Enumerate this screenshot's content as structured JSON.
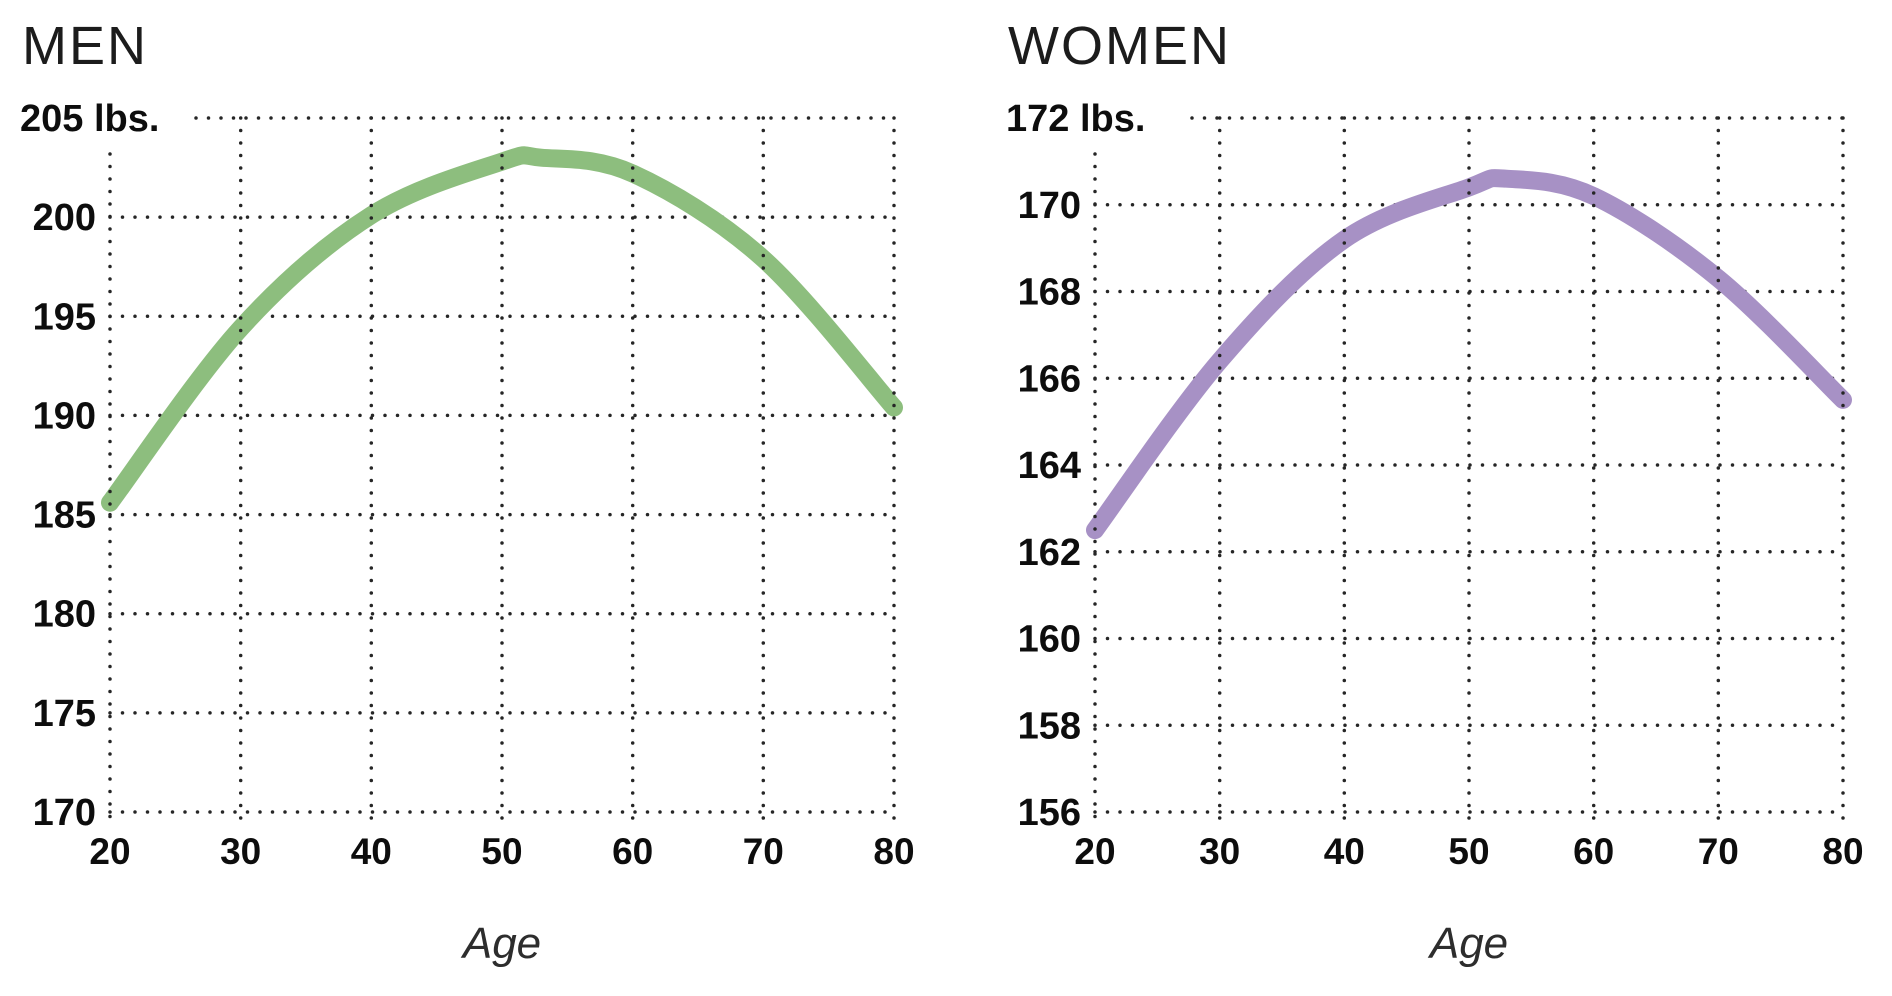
{
  "figure": {
    "background": "#ffffff",
    "grid_style": "dotted",
    "grid_color": "#262626"
  },
  "chart_data": [
    {
      "type": "line",
      "title": "MEN",
      "ylabel_top": "205 lbs.",
      "xlabel": "Age",
      "line_color": "#8dbe7e",
      "x": [
        20,
        30,
        40,
        50,
        53,
        60,
        70,
        80
      ],
      "y": [
        185.6,
        194.4,
        200.1,
        202.8,
        203.0,
        202.2,
        197.9,
        190.4
      ],
      "xticks": [
        20,
        30,
        40,
        50,
        60,
        70,
        80
      ],
      "yticks": [
        170,
        175,
        180,
        185,
        190,
        195,
        200,
        205
      ],
      "xlim": [
        20,
        80
      ],
      "ylim": [
        170,
        205
      ],
      "legend": "none",
      "grid": "dotted"
    },
    {
      "type": "line",
      "title": "WOMEN",
      "ylabel_top": "172 lbs.",
      "xlabel": "Age",
      "line_color": "#a791c5",
      "x": [
        20,
        30,
        40,
        50,
        53,
        60,
        70,
        80
      ],
      "y": [
        162.5,
        166.4,
        169.2,
        170.4,
        170.6,
        170.2,
        168.3,
        165.5
      ],
      "xticks": [
        20,
        30,
        40,
        50,
        60,
        70,
        80
      ],
      "yticks": [
        156,
        158,
        160,
        162,
        164,
        166,
        168,
        170,
        172
      ],
      "xlim": [
        20,
        80
      ],
      "ylim": [
        156,
        172
      ],
      "legend": "none",
      "grid": "dotted"
    }
  ]
}
